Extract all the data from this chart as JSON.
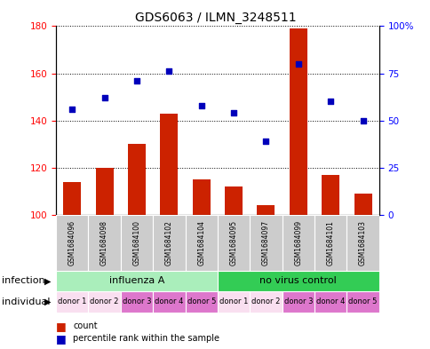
{
  "title": "GDS6063 / ILMN_3248511",
  "samples": [
    "GSM1684096",
    "GSM1684098",
    "GSM1684100",
    "GSM1684102",
    "GSM1684104",
    "GSM1684095",
    "GSM1684097",
    "GSM1684099",
    "GSM1684101",
    "GSM1684103"
  ],
  "bar_values": [
    114,
    120,
    130,
    143,
    115,
    112,
    104,
    179,
    117,
    109
  ],
  "scatter_pct": [
    56,
    62,
    71,
    76,
    58,
    54,
    39,
    80,
    60,
    50
  ],
  "ylim_left": [
    100,
    180
  ],
  "yticks_left": [
    100,
    120,
    140,
    160,
    180
  ],
  "ylim_right": [
    0,
    100
  ],
  "yticks_right": [
    0,
    25,
    50,
    75,
    100
  ],
  "ytick_labels_right": [
    "0",
    "25",
    "50",
    "75",
    "100%"
  ],
  "bar_color": "#cc2200",
  "scatter_color": "#0000bb",
  "infection_groups": [
    {
      "label": "influenza A",
      "start": 0,
      "end": 5,
      "color": "#aaeebb"
    },
    {
      "label": "no virus control",
      "start": 5,
      "end": 10,
      "color": "#33cc55"
    }
  ],
  "individual_labels": [
    "donor 1",
    "donor 2",
    "donor 3",
    "donor 4",
    "donor 5",
    "donor 1",
    "donor 2",
    "donor 3",
    "donor 4",
    "donor 5"
  ],
  "individual_colors": [
    "#f9dff0",
    "#f9dff0",
    "#dd77cc",
    "#dd77cc",
    "#dd77cc",
    "#f9dff0",
    "#f9dff0",
    "#dd77cc",
    "#dd77cc",
    "#dd77cc"
  ],
  "infection_row_label": "infection",
  "individual_row_label": "individual",
  "legend_bar_label": "count",
  "legend_scatter_label": "percentile rank within the sample",
  "sample_bg_color": "#cccccc",
  "background_color": "#ffffff",
  "title_fontsize": 10,
  "tick_fontsize": 7.5,
  "label_fontsize": 8,
  "sample_fontsize": 5.5,
  "ind_fontsize": 6
}
